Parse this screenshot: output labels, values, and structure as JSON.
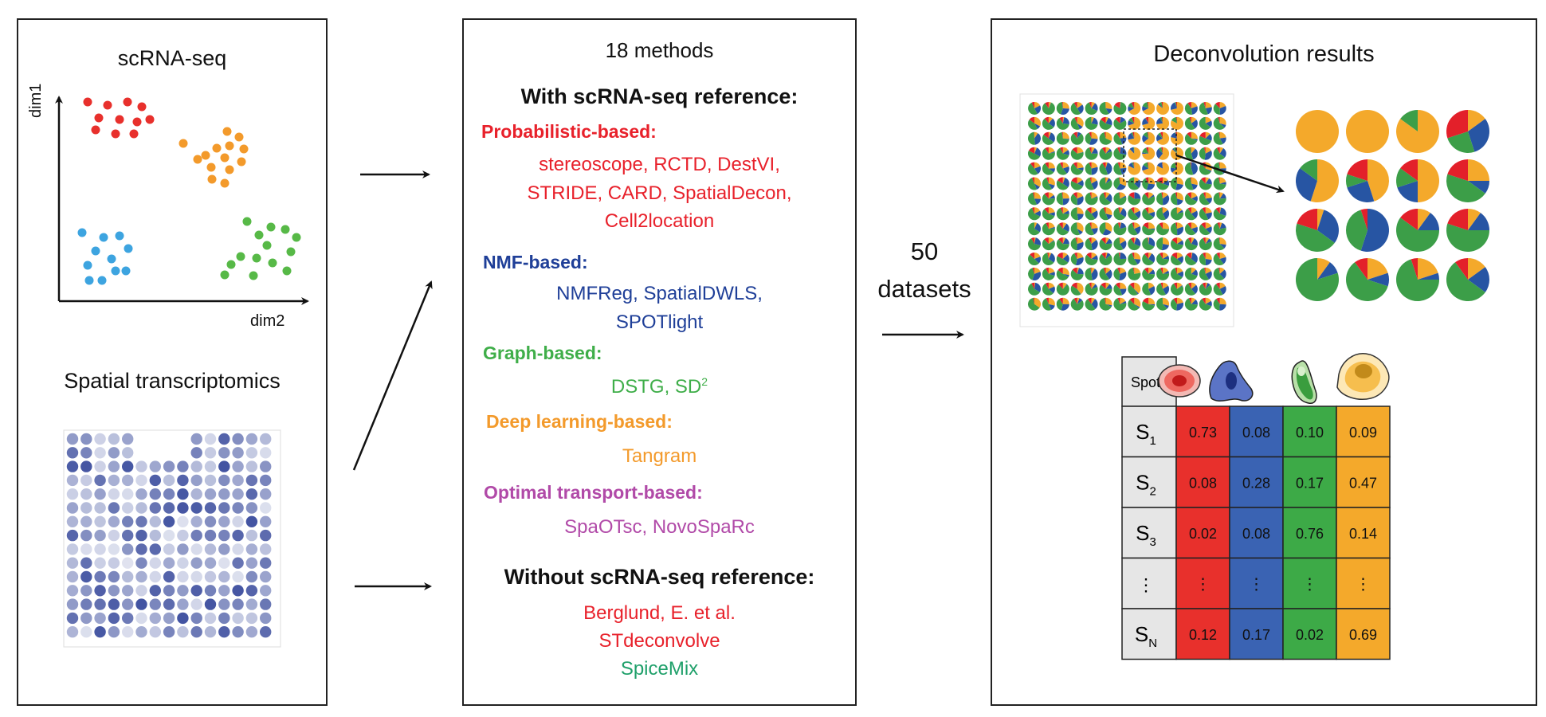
{
  "left_panel": {
    "scrna_title": "scRNA-seq",
    "y_axis_label": "dim1",
    "x_axis_label": "dim2",
    "st_title": "Spatial transcriptomics"
  },
  "middle_panel": {
    "title": "18 methods",
    "with_ref_header": "With scRNA-seq reference:",
    "categories": [
      {
        "label": "Probabilistic-based:",
        "color": "#e8212b",
        "lines": [
          "stereoscope, RCTD, DestVI,",
          "STRIDE,  CARD, SpatialDecon,",
          "Cell2location"
        ]
      },
      {
        "label": "NMF-based:",
        "color": "#1f3f98",
        "lines": [
          "NMFReg, SpatialDWLS,",
          "SPOTlight"
        ]
      },
      {
        "label": "Graph-based:",
        "color": "#3fae49",
        "lines": [
          "DSTG, SD"
        ],
        "superscript": "2"
      },
      {
        "label": "Deep learning-based:",
        "color": "#f39a2b",
        "lines": [
          "Tangram"
        ]
      },
      {
        "label": "Optimal transport-based:",
        "color": "#b14aa8",
        "lines": [
          "SpaOTsc, NovoSpaRc"
        ]
      }
    ],
    "without_ref_header": "Without scRNA-seq reference:",
    "without_ref_methods": [
      {
        "text": "Berglund, E. et al.",
        "color": "#e8212b"
      },
      {
        "text": "STdeconvolve",
        "color": "#e8212b"
      },
      {
        "text": "SpiceMix",
        "color": "#1fa06a"
      }
    ]
  },
  "datasets_label": {
    "count": "50",
    "word": "datasets"
  },
  "right_panel": {
    "title": "Deconvolution results",
    "table": {
      "header": "Spots",
      "rows": [
        {
          "spot": "S",
          "sub": "1",
          "values": [
            "0.73",
            "0.08",
            "0.10",
            "0.09"
          ]
        },
        {
          "spot": "S",
          "sub": "2",
          "values": [
            "0.08",
            "0.28",
            "0.17",
            "0.47"
          ]
        },
        {
          "spot": "S",
          "sub": "3",
          "values": [
            "0.02",
            "0.08",
            "0.76",
            "0.14"
          ]
        },
        {
          "spot": "⋮",
          "sub": "",
          "values": [
            "⋮",
            "⋮",
            "⋮",
            "⋮"
          ]
        },
        {
          "spot": "S",
          "sub": "N",
          "values": [
            "0.12",
            "0.17",
            "0.02",
            "0.69"
          ]
        }
      ],
      "column_colors": [
        "#e8302c",
        "#3a63b3",
        "#3daa47",
        "#f4a92b"
      ]
    }
  },
  "colors": {
    "red": "#e8302c",
    "orange": "#f39a2b",
    "blue": "#3da4e0",
    "green": "#57b947",
    "pie_orange": "#f4a92b",
    "pie_blue": "#2755a3",
    "pie_green": "#3c9e48",
    "pie_red": "#e3202a",
    "spot_blue": "#2c3f96"
  },
  "icons": [
    "red-cell-icon",
    "blue-cell-icon",
    "green-cell-icon",
    "orange-cell-icon",
    "arrow-icon"
  ]
}
